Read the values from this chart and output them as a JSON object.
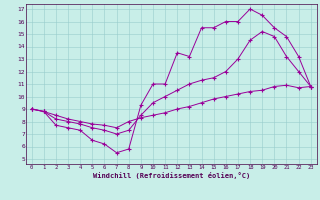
{
  "bg_color": "#c8eee8",
  "line_color": "#990099",
  "grid_color": "#99cccc",
  "xlabel": "Windchill (Refroidissement éolien,°C)",
  "xlim_min": -0.5,
  "xlim_max": 23.5,
  "ylim_min": 4.6,
  "ylim_max": 17.4,
  "xticks": [
    0,
    1,
    2,
    3,
    4,
    5,
    6,
    7,
    8,
    9,
    10,
    11,
    12,
    13,
    14,
    15,
    16,
    17,
    18,
    19,
    20,
    21,
    22,
    23
  ],
  "yticks": [
    5,
    6,
    7,
    8,
    9,
    10,
    11,
    12,
    13,
    14,
    15,
    16,
    17
  ],
  "line1_x": [
    0,
    1,
    2,
    3,
    4,
    5,
    6,
    7,
    8,
    9,
    10,
    11,
    12,
    13,
    14,
    15,
    16,
    17,
    18,
    19,
    20,
    21,
    22,
    23
  ],
  "line1_y": [
    9.0,
    8.8,
    7.7,
    7.5,
    7.3,
    6.5,
    6.2,
    5.5,
    5.8,
    9.3,
    11.0,
    11.0,
    13.5,
    13.2,
    15.5,
    15.5,
    16.0,
    16.0,
    17.0,
    16.5,
    15.5,
    14.8,
    13.2,
    10.8
  ],
  "line2_x": [
    0,
    1,
    2,
    3,
    4,
    5,
    6,
    7,
    8,
    9,
    10,
    11,
    12,
    13,
    14,
    15,
    16,
    17,
    18,
    19,
    20,
    21,
    22,
    23
  ],
  "line2_y": [
    9.0,
    8.8,
    8.5,
    8.2,
    8.0,
    7.8,
    7.7,
    7.5,
    8.0,
    8.3,
    8.5,
    8.7,
    9.0,
    9.2,
    9.5,
    9.8,
    10.0,
    10.2,
    10.4,
    10.5,
    10.8,
    10.9,
    10.7,
    10.8
  ],
  "line3_x": [
    0,
    1,
    2,
    3,
    4,
    5,
    6,
    7,
    8,
    9,
    10,
    11,
    12,
    13,
    14,
    15,
    16,
    17,
    18,
    19,
    20,
    21,
    22,
    23
  ],
  "line3_y": [
    9.0,
    8.8,
    8.2,
    8.0,
    7.8,
    7.5,
    7.3,
    7.0,
    7.3,
    8.5,
    9.5,
    10.0,
    10.5,
    11.0,
    11.3,
    11.5,
    12.0,
    13.0,
    14.5,
    15.2,
    14.8,
    13.2,
    12.0,
    10.8
  ]
}
